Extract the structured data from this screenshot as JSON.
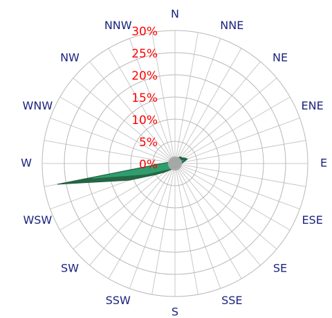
{
  "chart_data": {
    "type": "windrose",
    "x": [
      0,
      10,
      20,
      30,
      40,
      50,
      60,
      70,
      80,
      90,
      100,
      110,
      120,
      130,
      140,
      150,
      160,
      170,
      180,
      190,
      200,
      210,
      220,
      230,
      240,
      250,
      260,
      270,
      280,
      290,
      300,
      310,
      320,
      330,
      340,
      350
    ],
    "xticks": [
      {
        "value": 0,
        "label": "N"
      },
      {
        "value": 22.5,
        "label": "NNE"
      },
      {
        "value": 45,
        "label": "NE"
      },
      {
        "value": 67.5,
        "label": "ENE"
      },
      {
        "value": 90,
        "label": "E"
      },
      {
        "value": 112.5,
        "label": "ESE"
      },
      {
        "value": 135,
        "label": "SE"
      },
      {
        "value": 157.5,
        "label": "SSE"
      },
      {
        "value": 180,
        "label": "S"
      },
      {
        "value": 202.5,
        "label": "SSW"
      },
      {
        "value": 225,
        "label": "SW"
      },
      {
        "value": 247.5,
        "label": "WSW"
      },
      {
        "value": 270,
        "label": "W"
      },
      {
        "value": 292.5,
        "label": "WNW"
      },
      {
        "value": 315,
        "label": "NW"
      },
      {
        "value": 337.5,
        "label": "NNW"
      }
    ],
    "ylim": [
      0,
      30
    ],
    "yticks": [
      {
        "value": 0,
        "label": "0%"
      },
      {
        "value": 5,
        "label": "5%"
      },
      {
        "value": 10,
        "label": "10%"
      },
      {
        "value": 15,
        "label": "15%"
      },
      {
        "value": 20,
        "label": "20%"
      },
      {
        "value": 25,
        "label": "25%"
      },
      {
        "value": 30,
        "label": "30%"
      }
    ],
    "grid": true,
    "series": [
      {
        "color": "#1b5e3b",
        "values": [
          1,
          1,
          1,
          1.5,
          2,
          2,
          2.5,
          3,
          2,
          1.5,
          1,
          1,
          1,
          1,
          1,
          1,
          1,
          1,
          1,
          1,
          1,
          1.5,
          2,
          3,
          5,
          11,
          27,
          3,
          1.5,
          1,
          1,
          1,
          1,
          1,
          1,
          1
        ]
      },
      {
        "color": "#2fa070",
        "values": [
          0.5,
          0.5,
          0.5,
          1,
          1,
          1.5,
          1.5,
          2,
          1.5,
          1,
          0.5,
          0.5,
          0.5,
          0.5,
          0.5,
          0.5,
          0.5,
          0.5,
          0.5,
          0.5,
          0.5,
          1,
          1.5,
          2,
          3,
          7,
          19,
          2,
          1,
          0.5,
          0.5,
          0.5,
          0.5,
          0.5,
          0.5,
          0.5
        ]
      },
      {
        "color": "#aaaaaa",
        "values": [
          1.5,
          1.5,
          1.5,
          1.5,
          1.5,
          1.5,
          1.5,
          1.5,
          1.5,
          1.5,
          1.5,
          1.5,
          1.5,
          1.5,
          1.5,
          1.5,
          1.5,
          1.5,
          1.5,
          1.5,
          1.5,
          1.5,
          1.5,
          1.5,
          1.5,
          1.5,
          1.5,
          1.5,
          1.5,
          1.5,
          1.5,
          1.5,
          1.5,
          1.5,
          1.5,
          1.5
        ]
      }
    ]
  }
}
